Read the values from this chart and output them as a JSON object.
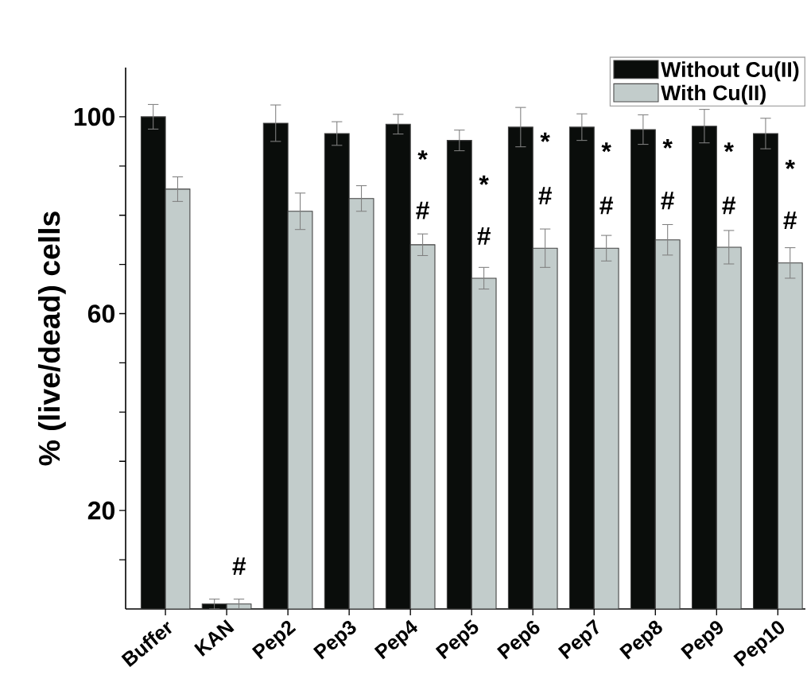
{
  "chart_data": {
    "type": "bar",
    "ylabel": "% (live/dead) cells",
    "categories": [
      "Buffer",
      "KAN",
      "Pep2",
      "Pep3",
      "Pep4",
      "Pep5",
      "Pep6",
      "Pep7",
      "Pep8",
      "Pep9",
      "Pep10"
    ],
    "series": [
      {
        "name": "Without Cu(II)",
        "color": "#0a0d0b",
        "values": [
          100,
          1,
          98.7,
          96.6,
          98.5,
          95.2,
          97.9,
          97.9,
          97.4,
          98.1,
          96.6
        ],
        "errors": [
          2.5,
          1,
          3.7,
          2.4,
          2,
          2.1,
          4,
          2.7,
          3,
          3.4,
          3.1
        ]
      },
      {
        "name": "With Cu(II)",
        "color": "#c2cccb",
        "values": [
          85.3,
          1,
          80.8,
          83.4,
          74,
          67.2,
          73.3,
          73.3,
          75,
          73.5,
          70.3
        ],
        "errors": [
          2.5,
          1,
          3.7,
          2.6,
          2.2,
          2.2,
          3.9,
          2.6,
          3.1,
          3.4,
          3.1
        ]
      }
    ],
    "ylim": [
      0,
      110
    ],
    "yticks": [
      {
        "value": 10,
        "label": null
      },
      20,
      {
        "value": 30,
        "label": null
      },
      {
        "value": 40,
        "label": null
      },
      {
        "value": 50,
        "label": null
      },
      60,
      {
        "value": 70,
        "label": null
      },
      {
        "value": 80,
        "label": null
      },
      {
        "value": 90,
        "label": null
      },
      100
    ],
    "legend": "top right",
    "grid": false,
    "annotations": [
      "#",
      {
        "text": "*",
        "x": "Pep4",
        "y": 88.5
      },
      {
        "text": "#",
        "x": "Pep4",
        "y": 78.1
      },
      {
        "text": "*",
        "x": "Pep5",
        "y": 83.4
      },
      {
        "text": "#",
        "x": "Pep5",
        "y": 72.9
      },
      {
        "text": "*",
        "x": "Pep6",
        "y": 92.1
      },
      {
        "text": "#",
        "x": "Pep6",
        "y": 81.1
      },
      {
        "text": "*",
        "x": "Pep7",
        "y": 90.1
      },
      {
        "text": "#",
        "x": "Pep7",
        "y": 79.1
      },
      {
        "text": "*",
        "x": "Pep8",
        "y": 90.8
      },
      {
        "text": "#",
        "x": "Pep8",
        "y": 80.1
      },
      {
        "text": "*",
        "x": "Pep9",
        "y": 90.1
      },
      {
        "text": "#",
        "x": "Pep9",
        "y": 79.1
      },
      {
        "text": "*",
        "x": "Pep10",
        "y": 86.6
      },
      {
        "text": "#",
        "x": "Pep10",
        "y": 76.1
      }
    ]
  }
}
